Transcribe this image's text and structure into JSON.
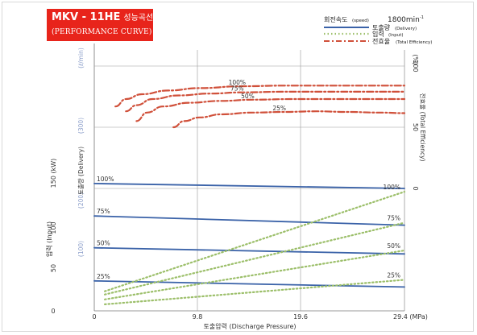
{
  "header": {
    "model": "MKV - 11HE",
    "model_kr": "성능곡선",
    "subtitle": "(PERFORMANCE CURVE)"
  },
  "legend": {
    "speed_label": "회전속도",
    "speed_label_en": "(speed)",
    "speed_value": "1800min",
    "speed_unit_sup": "-1",
    "delivery_label": "토출량",
    "delivery_label_en": "(Delivery)",
    "input_label": "입력",
    "input_label_en": "(Input)",
    "efficiency_label": "전효율",
    "efficiency_label_en": "(Total Efficiency)"
  },
  "axes": {
    "x_label": "토출압력 (Discharge Pressure)",
    "x_ticks": [
      "0",
      "9.8",
      "19.6",
      "29.4 (MPa)"
    ],
    "input_label": "입력 (Input)",
    "input_unit": "150 (kW)",
    "input_ticks": [
      "0",
      "50",
      "100"
    ],
    "delivery_label": "토출량 (Delivery)",
    "delivery_unit": "(ℓ/min)",
    "delivery_ticks": [
      "(100)",
      "(200)",
      "(300)"
    ],
    "efficiency_label": "전효율 (Total Efficiency)",
    "efficiency_unit": "(%)",
    "efficiency_ticks": [
      "0",
      "50",
      "100"
    ]
  },
  "colors": {
    "delivery": "#3a62a8",
    "input": "#9cbf6a",
    "efficiency": "#d0503a",
    "title_bg": "#e8241b",
    "grid": "#777777"
  },
  "chart_data": {
    "type": "line",
    "x_label": "토출압력 (Discharge Pressure)",
    "x_unit": "MPa",
    "xlim": [
      0,
      29.4
    ],
    "x_ticks": [
      0,
      9.8,
      19.6,
      29.4
    ],
    "y_axes": {
      "input": {
        "label": "입력 (Input)",
        "unit": "kW",
        "range": [
          0,
          150
        ],
        "ticks": [
          0,
          50,
          100,
          150
        ]
      },
      "delivery": {
        "label": "토출량 (Delivery)",
        "unit": "ℓ/min",
        "range": [
          0,
          300
        ],
        "ticks": [
          100,
          200,
          300
        ]
      },
      "efficiency": {
        "label": "전효율 (Total Efficiency)",
        "unit": "%",
        "range": [
          0,
          100
        ],
        "ticks": [
          0,
          50,
          100
        ]
      }
    },
    "series": [
      {
        "name": "토출량 100%",
        "group": "delivery",
        "label": "100%",
        "axis": "delivery",
        "x": [
          0,
          29.4
        ],
        "y": [
          208,
          200
        ]
      },
      {
        "name": "토출량 75%",
        "group": "delivery",
        "label": "75%",
        "axis": "delivery",
        "x": [
          0,
          29.4
        ],
        "y": [
          155,
          140
        ]
      },
      {
        "name": "토출량 50%",
        "group": "delivery",
        "label": "50%",
        "axis": "delivery",
        "x": [
          0,
          29.4
        ],
        "y": [
          103,
          93
        ]
      },
      {
        "name": "토출량 25%",
        "group": "delivery",
        "label": "25%",
        "axis": "delivery",
        "x": [
          0,
          29.4
        ],
        "y": [
          49,
          39
        ]
      },
      {
        "name": "입력 100%",
        "group": "input",
        "label": "100%",
        "axis": "input",
        "x": [
          1,
          29.4
        ],
        "y": [
          12,
          73
        ]
      },
      {
        "name": "입력 75%",
        "group": "input",
        "label": "75%",
        "axis": "input",
        "x": [
          1,
          29.4
        ],
        "y": [
          10,
          54
        ]
      },
      {
        "name": "입력 50%",
        "group": "input",
        "label": "50%",
        "axis": "input",
        "x": [
          1,
          29.4
        ],
        "y": [
          7,
          37
        ]
      },
      {
        "name": "입력 25%",
        "group": "input",
        "label": "25%",
        "axis": "input",
        "x": [
          1,
          29.4
        ],
        "y": [
          4,
          19
        ]
      },
      {
        "name": "전효율 100%",
        "group": "efficiency",
        "label": "100%",
        "axis": "efficiency",
        "x": [
          2,
          3,
          4.5,
          7,
          10,
          14,
          18,
          22,
          26,
          29.4
        ],
        "y": [
          67,
          73,
          77,
          80,
          82,
          83.5,
          84,
          84,
          84,
          84
        ]
      },
      {
        "name": "전효율 75%",
        "group": "efficiency",
        "label": "75%",
        "axis": "efficiency",
        "x": [
          3,
          4,
          5.5,
          8,
          11,
          14,
          18,
          22,
          26,
          29.4
        ],
        "y": [
          63,
          68,
          73,
          76,
          77.5,
          78.5,
          79,
          79,
          79,
          79
        ]
      },
      {
        "name": "전효율 50%",
        "group": "efficiency",
        "label": "50%",
        "axis": "efficiency",
        "x": [
          4,
          5,
          6.5,
          9,
          12,
          15,
          19,
          23,
          26,
          29.4
        ],
        "y": [
          55,
          62,
          67,
          70,
          71.5,
          72.5,
          73,
          73,
          73,
          73
        ]
      },
      {
        "name": "전효율 25%",
        "group": "efficiency",
        "label": "25%",
        "axis": "efficiency",
        "x": [
          7.5,
          8.5,
          10,
          12,
          15,
          18,
          21,
          24,
          27,
          29.4
        ],
        "y": [
          50,
          55,
          58,
          60.5,
          62,
          62.5,
          63,
          62.5,
          62,
          61.5
        ]
      }
    ],
    "grid": true,
    "legend_position": "top-right"
  }
}
